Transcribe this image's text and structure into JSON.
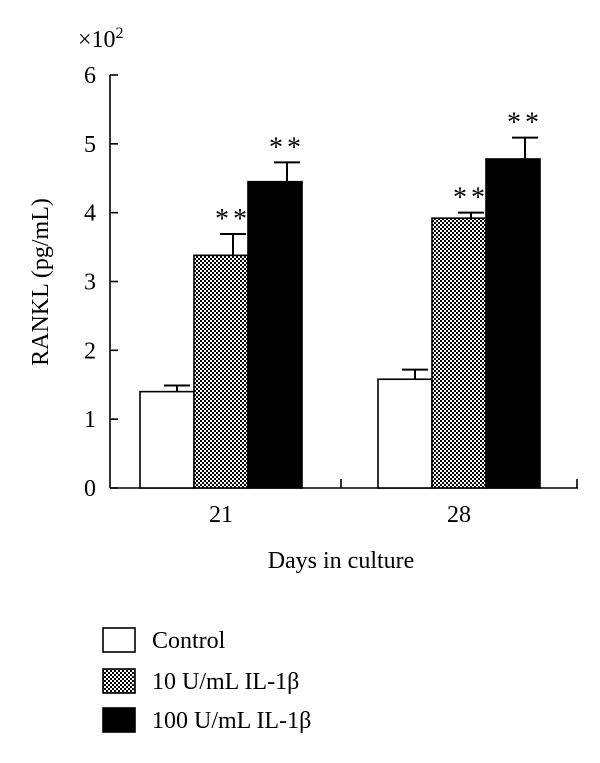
{
  "chart_data": {
    "type": "bar",
    "categories": [
      "21",
      "28"
    ],
    "series": [
      {
        "name": "Control",
        "values": [
          1.4,
          1.58
        ],
        "errors": [
          0.09,
          0.14
        ],
        "significance": [
          "",
          ""
        ],
        "style": "white"
      },
      {
        "name": "10 U/mL IL-1β",
        "values": [
          3.38,
          3.92
        ],
        "errors": [
          0.31,
          0.08
        ],
        "significance": [
          "**",
          "**"
        ],
        "style": "hatched"
      },
      {
        "name": "100 U/mL IL-1β",
        "values": [
          4.45,
          4.78
        ],
        "errors": [
          0.28,
          0.31
        ],
        "significance": [
          "**",
          "**"
        ],
        "style": "black"
      }
    ],
    "xlabel": "Days in culture",
    "ylabel": "RANKL (pg/mL)",
    "y_multiplier": "×10",
    "y_multiplier_exp": "2",
    "ylim": [
      0,
      6
    ],
    "yticks": [
      "0",
      "1",
      "2",
      "3",
      "4",
      "5",
      "6"
    ],
    "grid": false,
    "legend_position": "bottom-left"
  }
}
